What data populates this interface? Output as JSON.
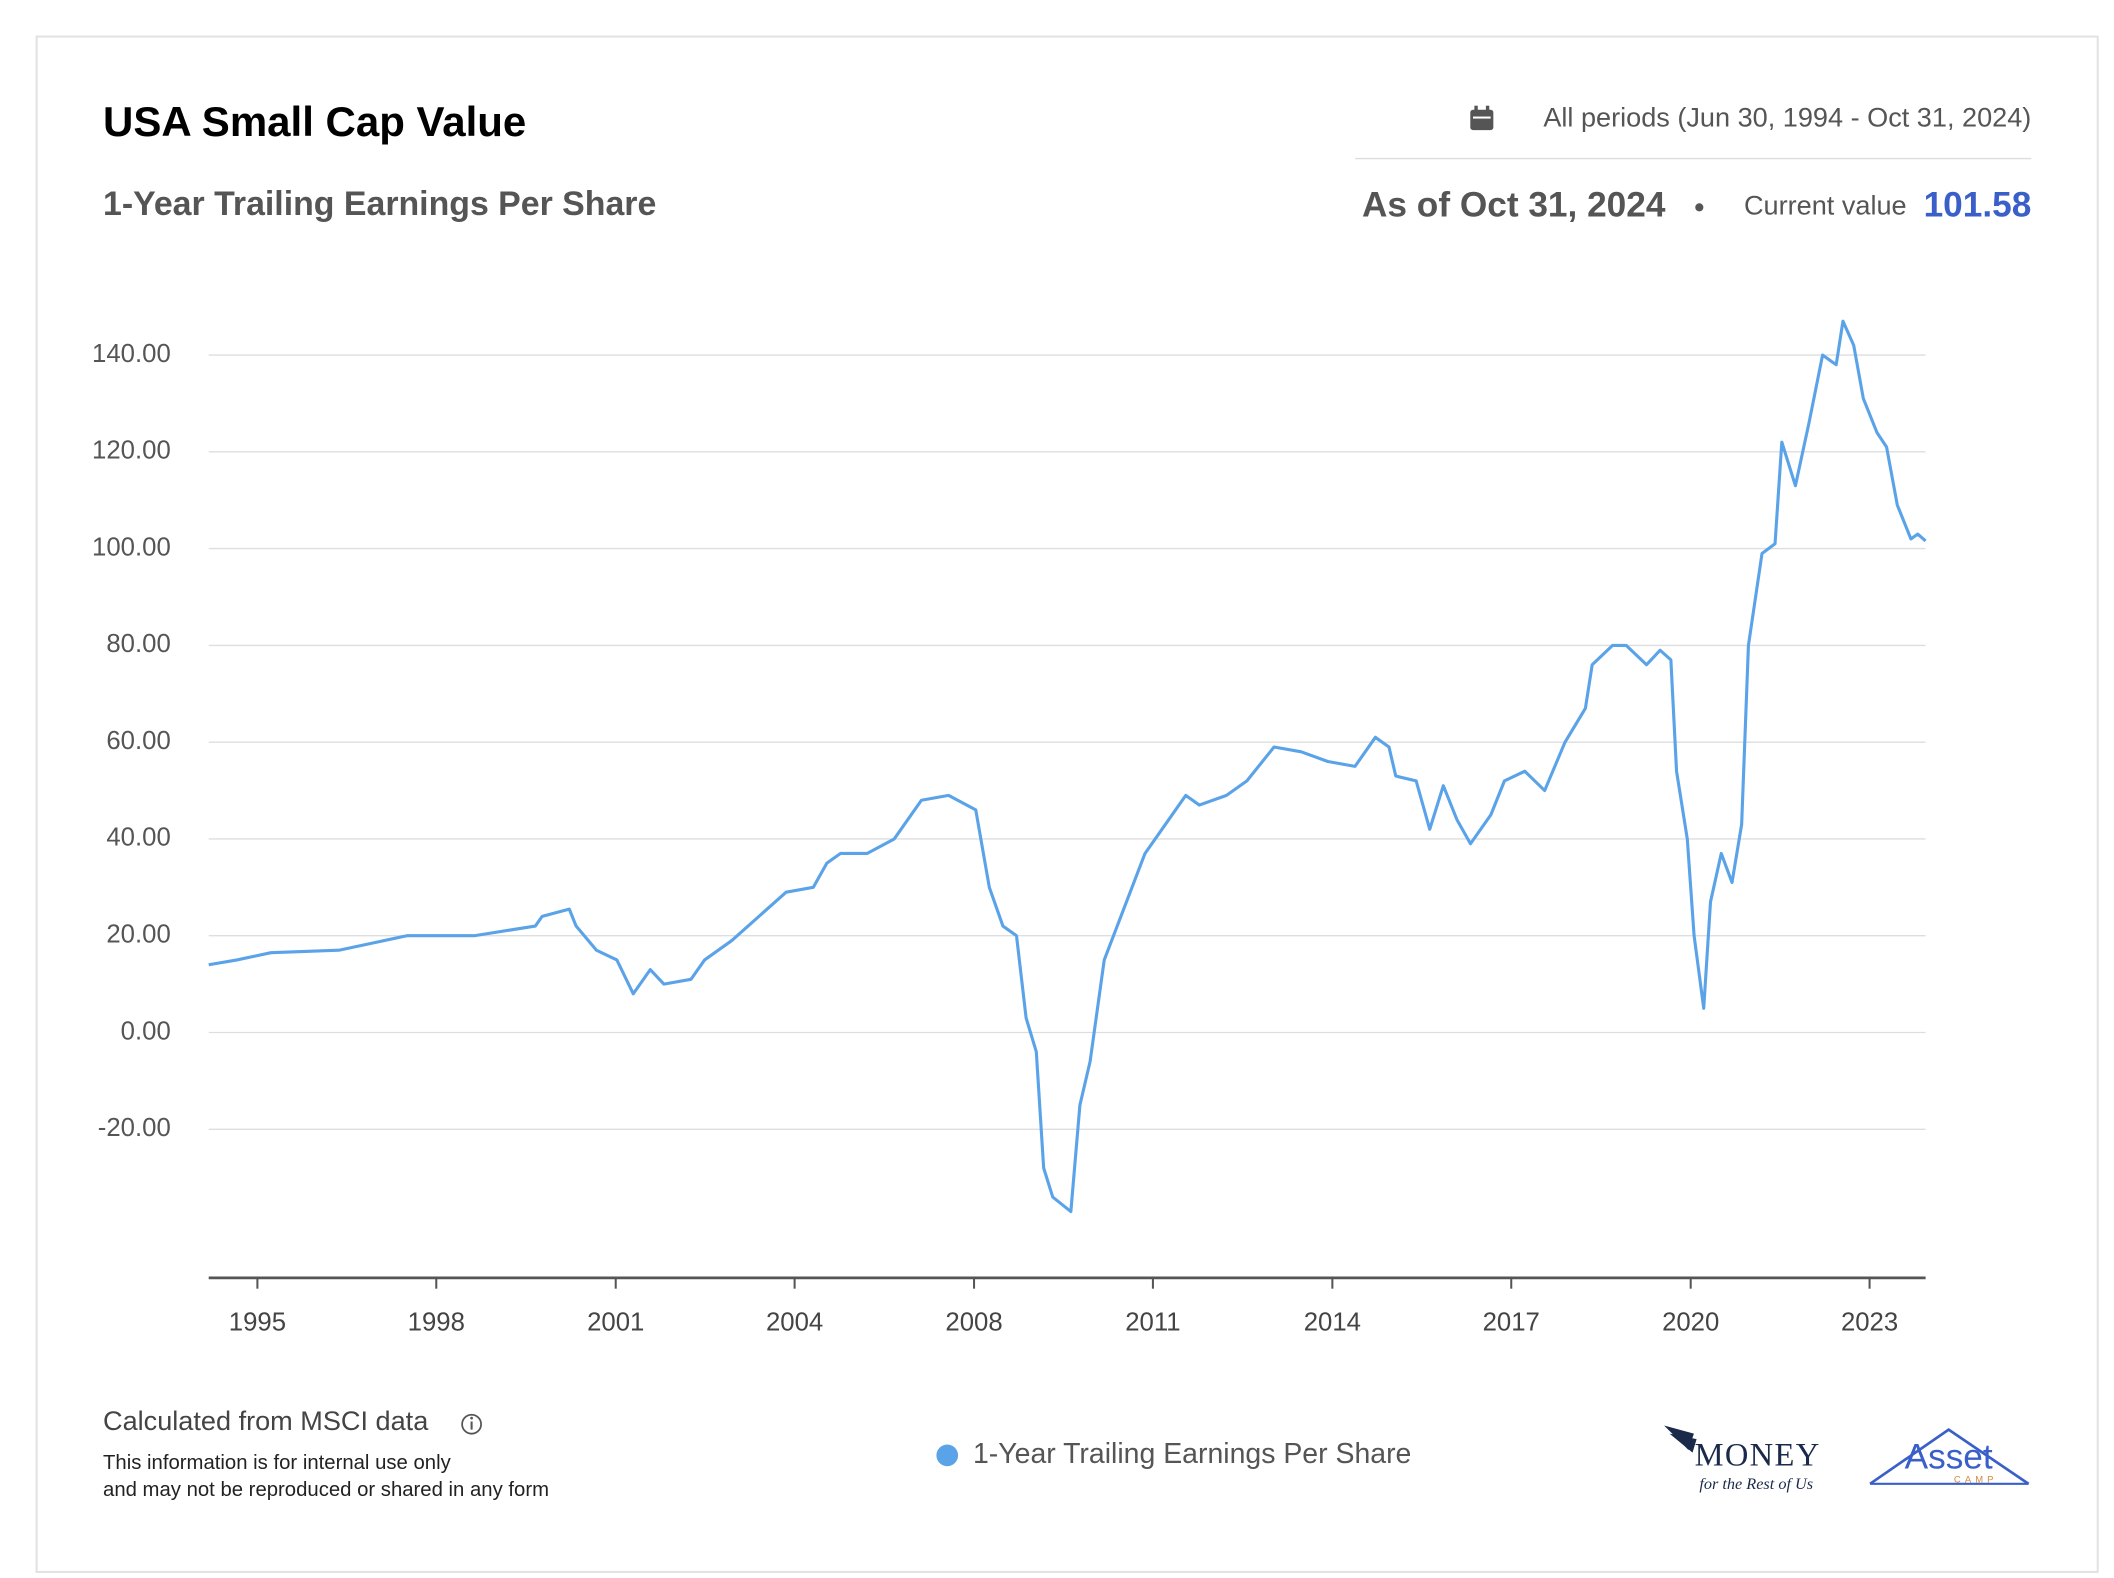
{
  "chart_data": {
    "type": "line",
    "title": "USA Small Cap Value",
    "subtitle": "1-Year Trailing Earnings Per Share",
    "period": "All periods (Jun 30, 1994 - Oct 31, 2024)",
    "as_of": "As of Oct 31, 2024",
    "current_value_label": "Current value",
    "current_value": 101.58,
    "source": "Calculated from MSCI data",
    "disclaimer": [
      "This information is for internal use only",
      "and may not be reproduced or shared in any form"
    ],
    "logos": [
      "MONEY",
      "for the Rest of Us",
      "Asset",
      "CAMP"
    ],
    "xlim": [
      1994.5,
      2024.83
    ],
    "xticks": [
      {
        "value": 1995.36,
        "label": "1995"
      },
      {
        "value": 1998.52,
        "label": "1998"
      },
      {
        "value": 2001.69,
        "label": "2001"
      },
      {
        "value": 2004.85,
        "label": "2004"
      },
      {
        "value": 2008.02,
        "label": "2008"
      },
      {
        "value": 2011.18,
        "label": "2011"
      },
      {
        "value": 2014.35,
        "label": "2014"
      },
      {
        "value": 2017.51,
        "label": "2017"
      },
      {
        "value": 2020.68,
        "label": "2020"
      },
      {
        "value": 2023.84,
        "label": "2023"
      }
    ],
    "ylim": [
      -50.7,
      150
    ],
    "yticks": [
      {
        "value": -20,
        "label": "-20.00"
      },
      {
        "value": 0,
        "label": "0.00"
      },
      {
        "value": 20,
        "label": "20.00"
      },
      {
        "value": 40,
        "label": "40.00"
      },
      {
        "value": 60,
        "label": "60.00"
      },
      {
        "value": 80,
        "label": "80.00"
      },
      {
        "value": 100,
        "label": "100.00"
      },
      {
        "value": 120,
        "label": "120.00"
      },
      {
        "value": 140,
        "label": "140.00"
      }
    ],
    "grid": true,
    "x": [
      1994.5,
      1995.0,
      1995.6,
      1996.8,
      1998.0,
      1999.19,
      2000.27,
      2000.39,
      2000.87,
      2000.99,
      2001.35,
      2001.71,
      2002.0,
      2002.3,
      2002.54,
      2003.02,
      2003.26,
      2003.74,
      2004.22,
      2004.7,
      2005.18,
      2005.42,
      2005.66,
      2006.13,
      2006.61,
      2007.09,
      2007.57,
      2008.05,
      2008.29,
      2008.53,
      2008.77,
      2008.94,
      2009.12,
      2009.25,
      2009.41,
      2009.73,
      2009.89,
      2010.07,
      2010.32,
      2010.68,
      2011.04,
      2011.4,
      2011.76,
      2012.0,
      2012.48,
      2012.84,
      2013.32,
      2013.8,
      2014.27,
      2014.75,
      2015.11,
      2015.35,
      2015.47,
      2015.83,
      2016.07,
      2016.31,
      2016.55,
      2016.79,
      2017.15,
      2017.39,
      2017.75,
      2018.1,
      2018.46,
      2018.82,
      2018.94,
      2019.3,
      2019.54,
      2019.9,
      2020.14,
      2020.33,
      2020.43,
      2020.62,
      2020.74,
      2020.91,
      2021.03,
      2021.22,
      2021.41,
      2021.58,
      2021.7,
      2021.94,
      2022.17,
      2022.29,
      2022.53,
      2022.77,
      2023.01,
      2023.25,
      2023.37,
      2023.56,
      2023.73,
      2023.97,
      2024.14,
      2024.33,
      2024.57,
      2024.69,
      2024.83
    ],
    "series": [
      {
        "name": "1-Year Trailing Earnings Per Share",
        "color": "#5ba3e8",
        "values": [
          14,
          15,
          16.5,
          17,
          20,
          20,
          22,
          24,
          25.5,
          22,
          17,
          15,
          8,
          13,
          10,
          11,
          15,
          19,
          24,
          29,
          30,
          35,
          37,
          37,
          40,
          48,
          49,
          46,
          30,
          22,
          20,
          3,
          -4,
          -28,
          -34,
          -37,
          -15,
          -6,
          15,
          26,
          37,
          43,
          49,
          47,
          49,
          52,
          59,
          58,
          56,
          55,
          61,
          59,
          53,
          52,
          42,
          51,
          44,
          39,
          45,
          52,
          54,
          50,
          60,
          67,
          76,
          80,
          80,
          76,
          79,
          77,
          54,
          40,
          20,
          5,
          27,
          37,
          31,
          43,
          80,
          99,
          101,
          122,
          113,
          126,
          140,
          138,
          147,
          142,
          131,
          124,
          121,
          109,
          102,
          103,
          101.58
        ]
      }
    ]
  }
}
